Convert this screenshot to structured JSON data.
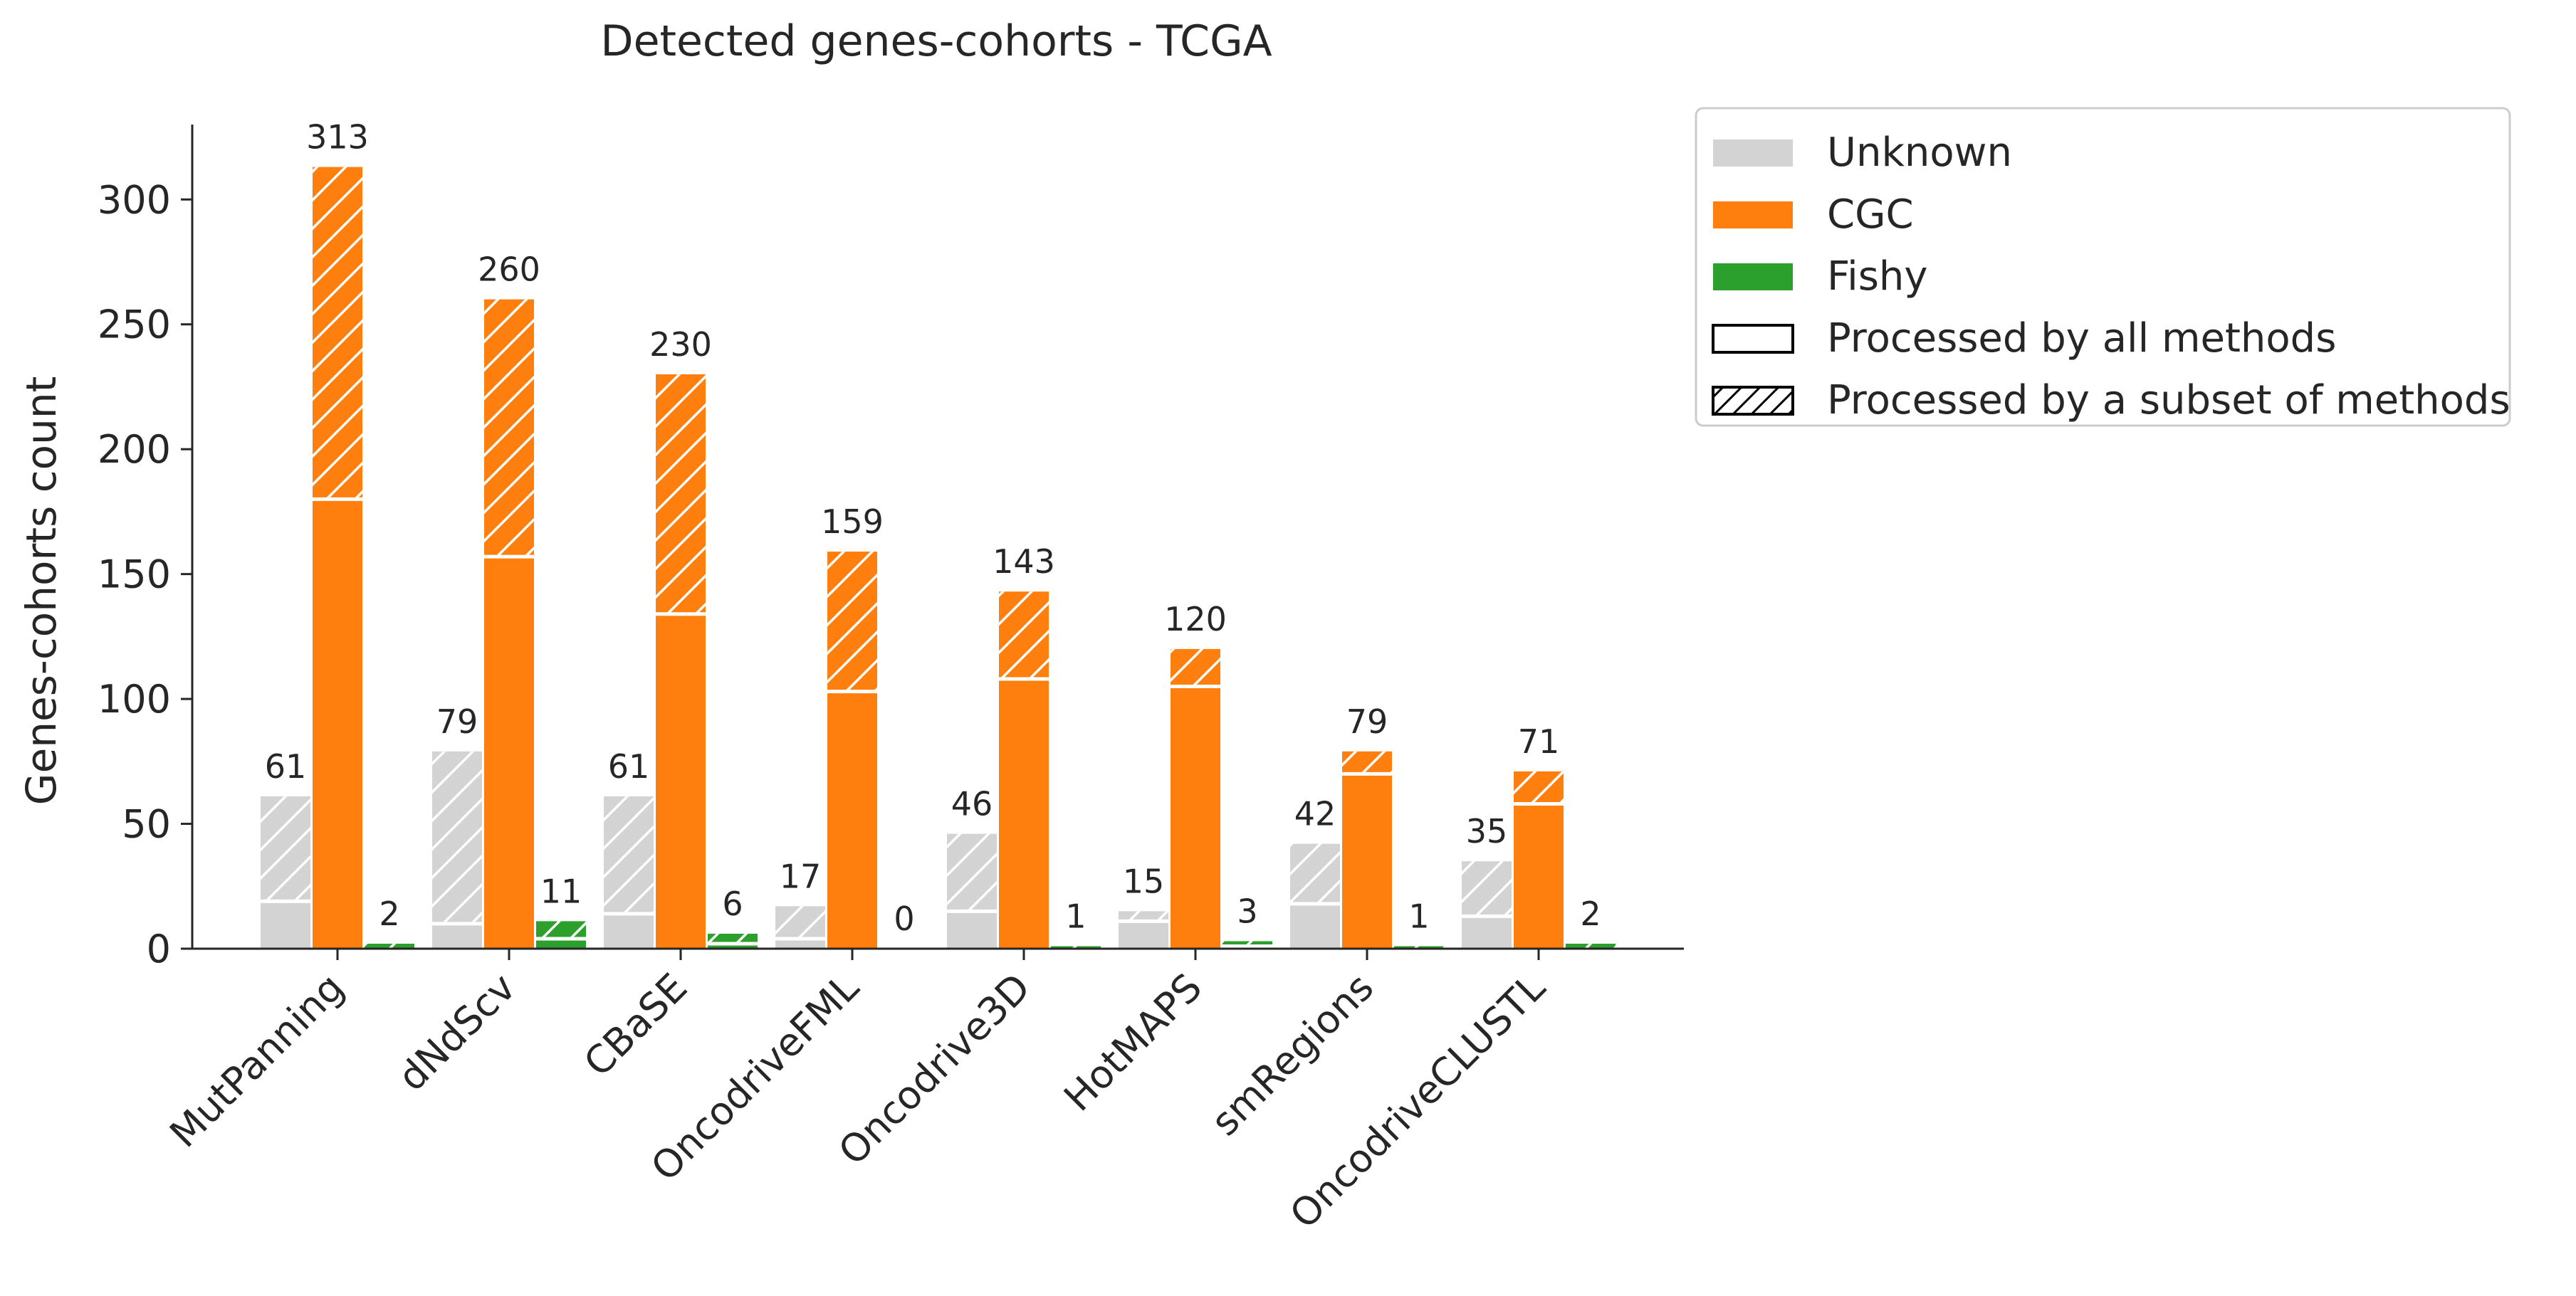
{
  "chart_data": {
    "type": "bar",
    "title": "Detected genes-cohorts - TCGA",
    "xlabel": "",
    "ylabel": "Genes-cohorts count",
    "ylim": [
      0,
      330
    ],
    "yticks": [
      0,
      50,
      100,
      150,
      200,
      250,
      300
    ],
    "categories": [
      "MutPanning",
      "dNdScv",
      "CBaSE",
      "OncodriveFML",
      "Oncodrive3D",
      "HotMAPS",
      "smRegions",
      "OncodriveCLUSTL"
    ],
    "grid": false,
    "legend_position": "outside-top-right",
    "series": [
      {
        "name": "Unknown",
        "color": "#d3d3d3",
        "totals": [
          61,
          79,
          61,
          17,
          46,
          15,
          42,
          35
        ],
        "processed_by_all_methods": [
          19,
          10,
          14,
          4,
          15,
          11,
          18,
          13
        ]
      },
      {
        "name": "CGC",
        "color": "#ff7f0e",
        "totals": [
          313,
          260,
          230,
          159,
          143,
          120,
          79,
          71
        ],
        "processed_by_all_methods": [
          180,
          157,
          134,
          103,
          108,
          105,
          70,
          58
        ]
      },
      {
        "name": "Fishy",
        "color": "#2ca02c",
        "totals": [
          2,
          11,
          6,
          0,
          1,
          3,
          1,
          2
        ],
        "processed_by_all_methods": [
          0,
          4,
          2,
          0,
          0,
          1,
          0,
          0
        ]
      }
    ],
    "value_labels": [
      [
        "61",
        "313",
        "2"
      ],
      [
        "79",
        "260",
        "11"
      ],
      [
        "61",
        "230",
        "6"
      ],
      [
        "17",
        "159",
        "0"
      ],
      [
        "46",
        "143",
        "1"
      ],
      [
        "15",
        "120",
        "3"
      ],
      [
        "42",
        "79",
        "1"
      ],
      [
        "35",
        "71",
        "2"
      ]
    ],
    "legend": {
      "entries": [
        {
          "label": "Unknown",
          "style": "fill",
          "color": "#d3d3d3"
        },
        {
          "label": "CGC",
          "style": "fill",
          "color": "#ff7f0e"
        },
        {
          "label": "Fishy",
          "style": "fill",
          "color": "#2ca02c"
        },
        {
          "label": "Processed by all methods",
          "style": "outline"
        },
        {
          "label": "Processed by a subset of methods",
          "style": "hatch"
        }
      ]
    }
  }
}
